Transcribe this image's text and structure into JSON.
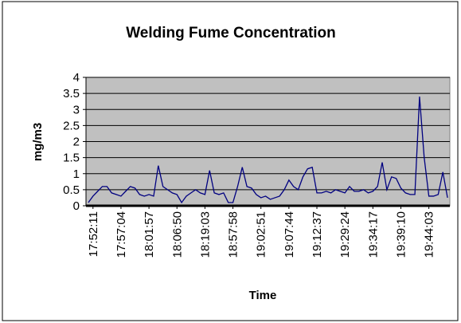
{
  "chart_data": {
    "type": "line",
    "title": "Welding Fume Concentration",
    "x_label": "Time",
    "y_label": "mg/m3",
    "categories": [
      null,
      "17:52:11",
      null,
      null,
      null,
      null,
      null,
      "17:57:04",
      null,
      null,
      null,
      null,
      null,
      "18:01:57",
      null,
      null,
      null,
      null,
      null,
      "18:06:50",
      null,
      null,
      null,
      null,
      null,
      "18:19:03",
      null,
      null,
      null,
      null,
      null,
      "18:57:58",
      null,
      null,
      null,
      null,
      null,
      "19:02:51",
      null,
      null,
      null,
      null,
      null,
      "19:07:44",
      null,
      null,
      null,
      null,
      null,
      "19:12:37",
      null,
      null,
      null,
      null,
      null,
      "19:29:24",
      null,
      null,
      null,
      null,
      null,
      "19:34:17",
      null,
      null,
      null,
      null,
      null,
      "19:39:10",
      null,
      null,
      null,
      null,
      null,
      "19:44:03",
      null,
      null,
      null,
      null
    ],
    "values": [
      0.1,
      0.3,
      0.45,
      0.6,
      0.6,
      0.4,
      0.35,
      0.3,
      0.45,
      0.6,
      0.55,
      0.35,
      0.3,
      0.35,
      0.3,
      1.25,
      0.6,
      0.5,
      0.4,
      0.35,
      0.1,
      0.3,
      0.4,
      0.5,
      0.4,
      0.35,
      1.1,
      0.4,
      0.35,
      0.4,
      0.1,
      0.1,
      0.6,
      1.2,
      0.6,
      0.55,
      0.35,
      0.25,
      0.3,
      0.2,
      0.25,
      0.3,
      0.5,
      0.8,
      0.6,
      0.5,
      0.9,
      1.15,
      1.2,
      0.4,
      0.4,
      0.45,
      0.4,
      0.5,
      0.45,
      0.4,
      0.6,
      0.45,
      0.45,
      0.5,
      0.4,
      0.45,
      0.6,
      1.35,
      0.5,
      0.9,
      0.85,
      0.55,
      0.4,
      0.35,
      0.35,
      3.4,
      1.5,
      0.3,
      0.3,
      0.35,
      1.05,
      0.25
    ],
    "color": "#000080",
    "ylim": [
      0,
      4
    ],
    "yticks": [
      0,
      0.5,
      1,
      1.5,
      2,
      2.5,
      3,
      3.5,
      4
    ],
    "grid": true
  }
}
